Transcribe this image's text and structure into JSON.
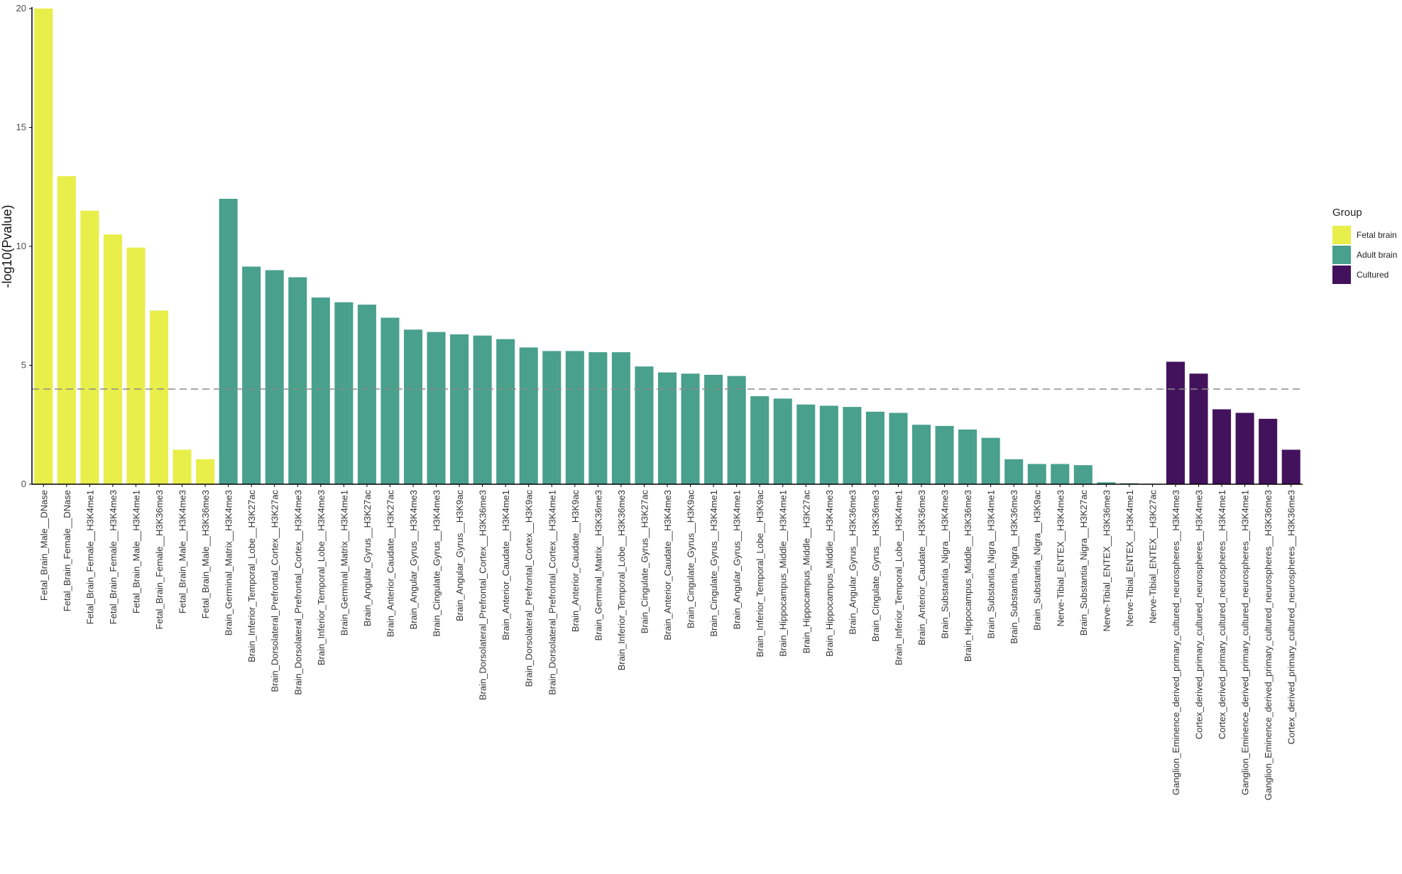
{
  "chart_data": {
    "type": "bar",
    "title": "",
    "xlabel": "",
    "ylabel": "-log10(Pvalue)",
    "ylim": [
      0,
      20
    ],
    "yticks": [
      0,
      5,
      10,
      15,
      20
    ],
    "threshold": 4,
    "grid": false,
    "legend": {
      "title": "Group",
      "position": "right",
      "entries": [
        {
          "label": "Fetal brain",
          "color": "#e8ee4a"
        },
        {
          "label": "Adult brain",
          "color": "#48a08d"
        },
        {
          "label": "Cultured",
          "color": "#43125c"
        }
      ]
    },
    "categories": [
      "Fetal_Brain_Male__DNase",
      "Fetal_Brain_Female__DNase",
      "Fetal_Brain_Female__H3K4me1",
      "Fetal_Brain_Female__H3K4me3",
      "Fetal_Brain_Male__H3K4me1",
      "Fetal_Brain_Female__H3K36me3",
      "Fetal_Brain_Male__H3K4me3",
      "Fetal_Brain_Male__H3K36me3",
      "Brain_Germinal_Matrix__H3K4me3",
      "Brain_Inferior_Temporal_Lobe__H3K27ac",
      "Brain_Dorsolateral_Prefrontal_Cortex__H3K27ac",
      "Brain_Dorsolateral_Prefrontal_Cortex__H3K4me3",
      "Brain_Inferior_Temporal_Lobe__H3K4me3",
      "Brain_Germinal_Matrix__H3K4me1",
      "Brain_Angular_Gyrus__H3K27ac",
      "Brain_Anterior_Caudate__H3K27ac",
      "Brain_Angular_Gyrus__H3K4me3",
      "Brain_Cingulate_Gyrus__H3K4me3",
      "Brain_Angular_Gyrus__H3K9ac",
      "Brain_Dorsolateral_Prefrontal_Cortex__H3K36me3",
      "Brain_Anterior_Caudate__H3K4me1",
      "Brain_Dorsolateral_Prefrontal_Cortex__H3K9ac",
      "Brain_Dorsolateral_Prefrontal_Cortex__H3K4me1",
      "Brain_Anterior_Caudate__H3K9ac",
      "Brain_Germinal_Matrix__H3K36me3",
      "Brain_Inferior_Temporal_Lobe__H3K36me3",
      "Brain_Cingulate_Gyrus__H3K27ac",
      "Brain_Anterior_Caudate__H3K4me3",
      "Brain_Cingulate_Gyrus__H3K9ac",
      "Brain_Cingulate_Gyrus__H3K4me1",
      "Brain_Angular_Gyrus__H3K4me1",
      "Brain_Inferior_Temporal_Lobe__H3K9ac",
      "Brain_Hippocampus_Middle__H3K4me1",
      "Brain_Hippocampus_Middle__H3K27ac",
      "Brain_Hippocampus_Middle__H3K4me3",
      "Brain_Angular_Gyrus__H3K36me3",
      "Brain_Cingulate_Gyrus__H3K36me3",
      "Brain_Inferior_Temporal_Lobe__H3K4me1",
      "Brain_Anterior_Caudate__H3K36me3",
      "Brain_Substantia_Nigra__H3K4me3",
      "Brain_Hippocampus_Middle__H3K36me3",
      "Brain_Substantia_Nigra__H3K4me1",
      "Brain_Substantia_Nigra__H3K36me3",
      "Brain_Substantia_Nigra__H3K9ac",
      "Nerve-Tibial_ENTEX__H3K4me3",
      "Brain_Substantia_Nigra__H3K27ac",
      "Nerve-Tibial_ENTEX__H3K36me3",
      "Nerve-Tibial_ENTEX__H3K4me1",
      "Nerve-Tibial_ENTEX__H3K27ac",
      "Ganglion_Eminence_derived_primary_cultured_neurospheres__H3K4me3",
      "Cortex_derived_primary_cultured_neurospheres__H3K4me3",
      "Cortex_derived_primary_cultured_neurospheres__H3K4me1",
      "Ganglion_Eminence_derived_primary_cultured_neurospheres__H3K4me1",
      "Ganglion_Eminence_derived_primary_cultured_neurospheres__H3K36me3",
      "Cortex_derived_primary_cultured_neurospheres__H3K36me3"
    ],
    "values": [
      20.0,
      12.95,
      11.5,
      10.5,
      9.95,
      7.3,
      1.45,
      1.05,
      12.0,
      9.15,
      9.0,
      8.7,
      7.85,
      7.65,
      7.55,
      7.0,
      6.5,
      6.4,
      6.3,
      6.25,
      6.1,
      5.75,
      5.6,
      5.6,
      5.55,
      5.55,
      4.95,
      4.7,
      4.65,
      4.6,
      4.55,
      3.7,
      3.6,
      3.35,
      3.3,
      3.25,
      3.05,
      3.0,
      2.5,
      2.45,
      2.3,
      1.95,
      1.05,
      0.85,
      0.85,
      0.8,
      0.08,
      0.04,
      0.02,
      5.15,
      4.65,
      3.15,
      3.0,
      2.75,
      1.45
    ],
    "groups": [
      "Fetal brain",
      "Fetal brain",
      "Fetal brain",
      "Fetal brain",
      "Fetal brain",
      "Fetal brain",
      "Fetal brain",
      "Fetal brain",
      "Adult brain",
      "Adult brain",
      "Adult brain",
      "Adult brain",
      "Adult brain",
      "Adult brain",
      "Adult brain",
      "Adult brain",
      "Adult brain",
      "Adult brain",
      "Adult brain",
      "Adult brain",
      "Adult brain",
      "Adult brain",
      "Adult brain",
      "Adult brain",
      "Adult brain",
      "Adult brain",
      "Adult brain",
      "Adult brain",
      "Adult brain",
      "Adult brain",
      "Adult brain",
      "Adult brain",
      "Adult brain",
      "Adult brain",
      "Adult brain",
      "Adult brain",
      "Adult brain",
      "Adult brain",
      "Adult brain",
      "Adult brain",
      "Adult brain",
      "Adult brain",
      "Adult brain",
      "Adult brain",
      "Adult brain",
      "Adult brain",
      "Adult brain",
      "Adult brain",
      "Adult brain",
      "Cultured",
      "Cultured",
      "Cultured",
      "Cultured",
      "Cultured",
      "Cultured"
    ]
  }
}
